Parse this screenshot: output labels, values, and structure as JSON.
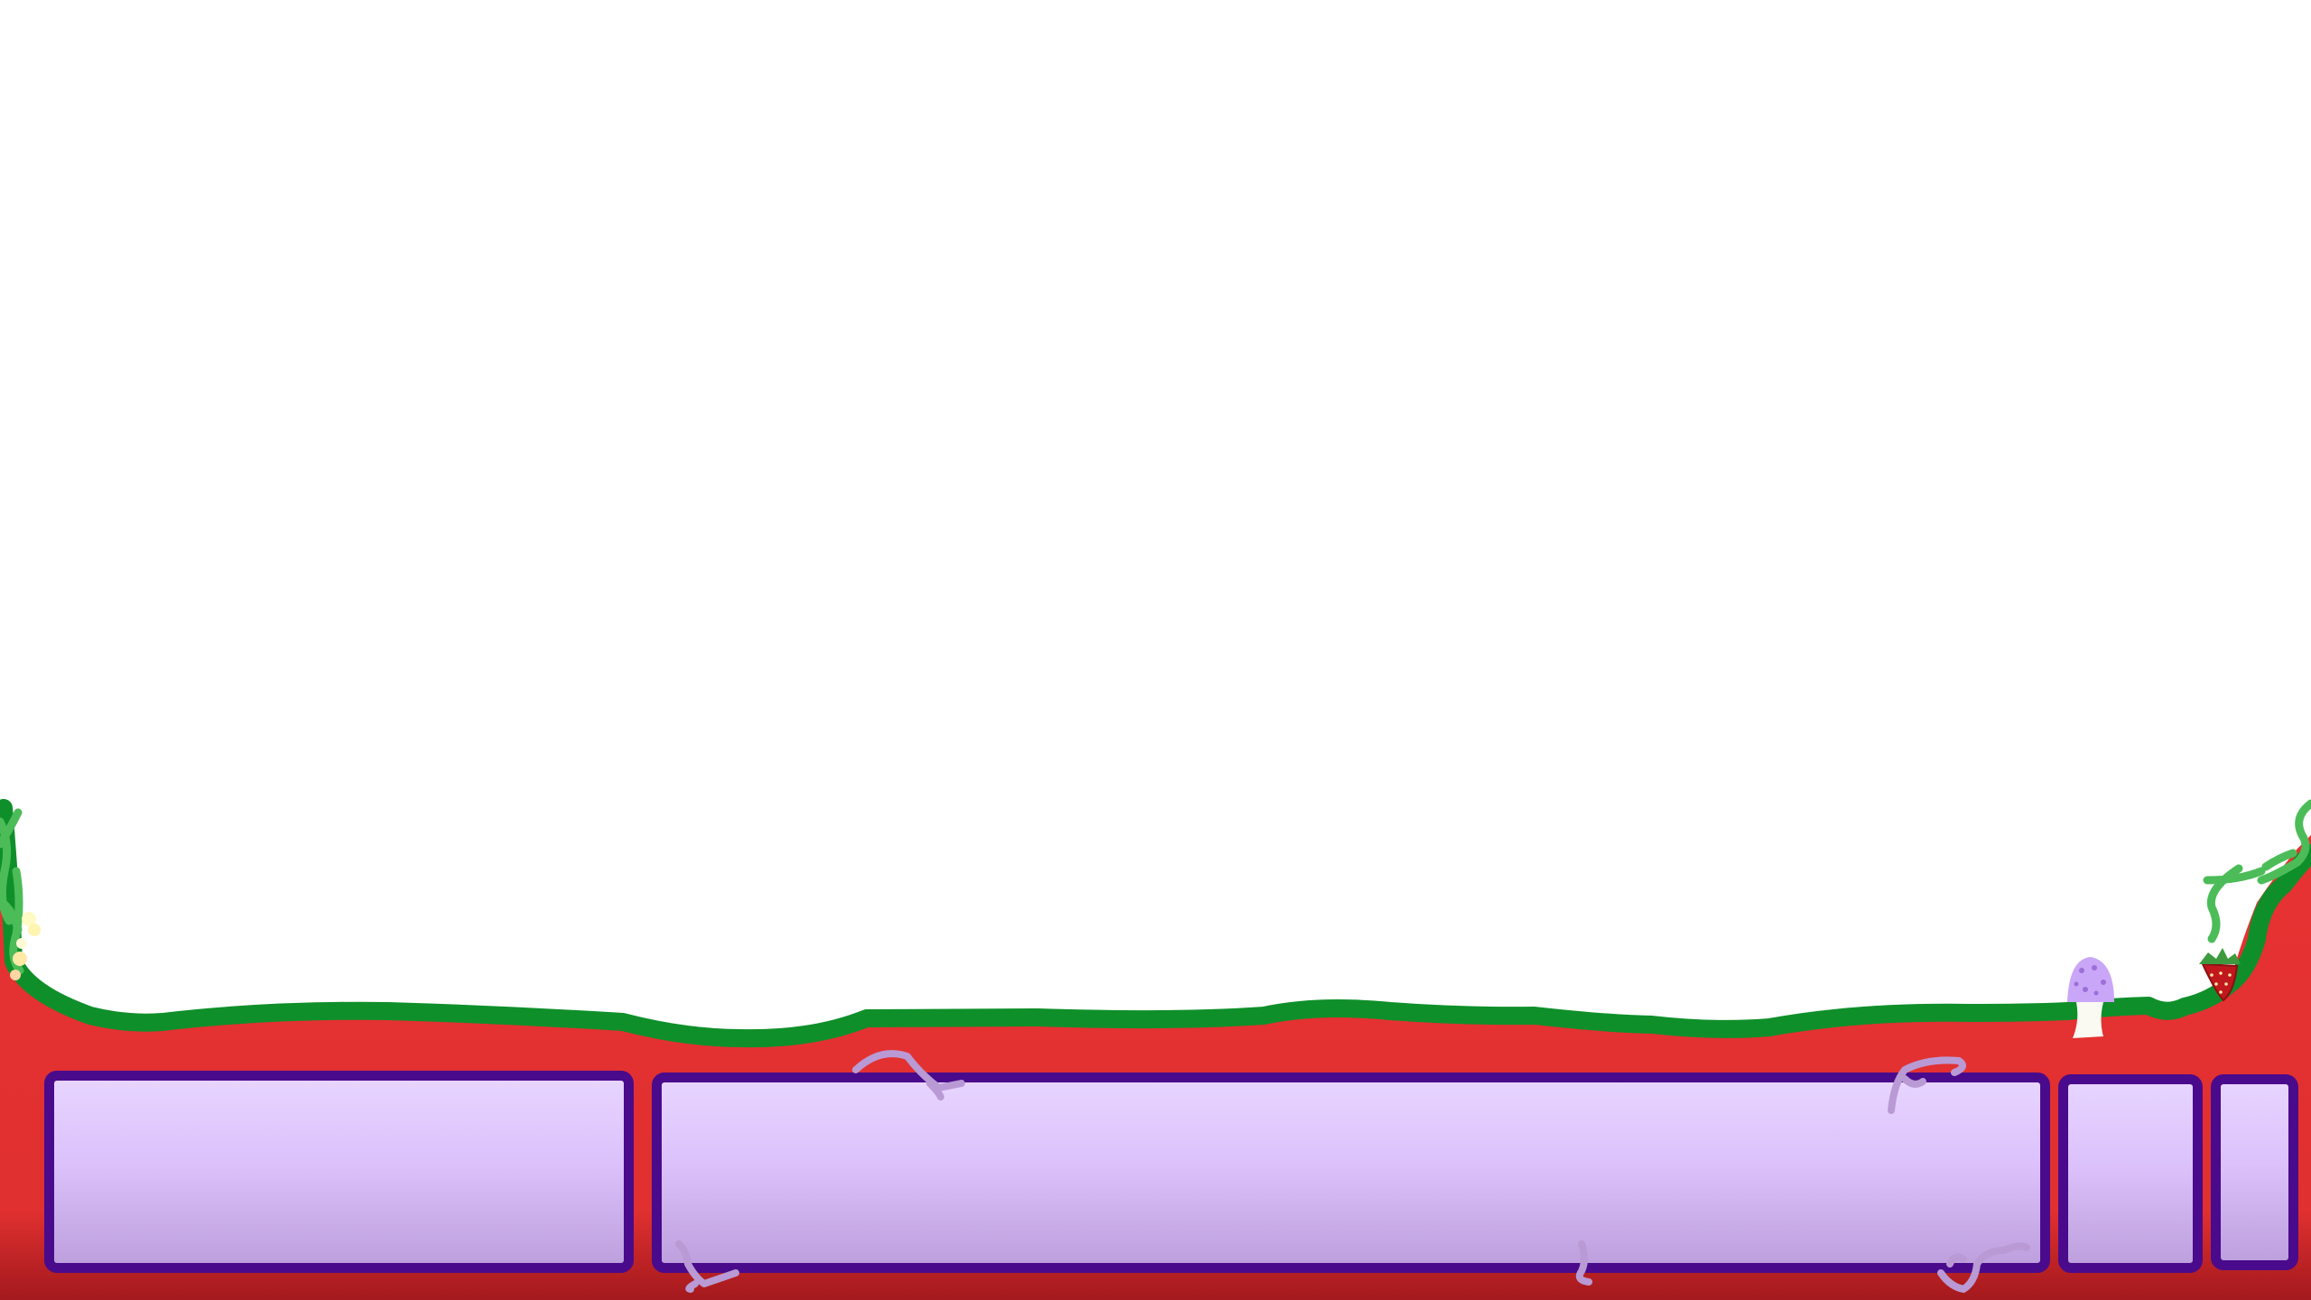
{
  "scene": {
    "colors": {
      "ground": "#e83232",
      "ground_dark": "#a3191d",
      "grass_edge": "#0f8f2a",
      "vine": "#4cbc58",
      "panel_border": "#4a0a8c",
      "panel_fill": "#dcc1fb",
      "root": "#b99ad4",
      "mushroom_cap": "#c9a6f7",
      "strawberry": "#c0181c"
    },
    "decorations": [
      "vine-left",
      "flower-cluster-left",
      "vine-right",
      "strawberry",
      "mushroom",
      "roots"
    ]
  },
  "hud": {
    "panels": [
      {
        "name": "hud-panel-left",
        "text": ""
      },
      {
        "name": "hud-panel-main",
        "text": ""
      },
      {
        "name": "hud-panel-small",
        "text": ""
      },
      {
        "name": "hud-panel-tiny",
        "text": ""
      }
    ]
  }
}
